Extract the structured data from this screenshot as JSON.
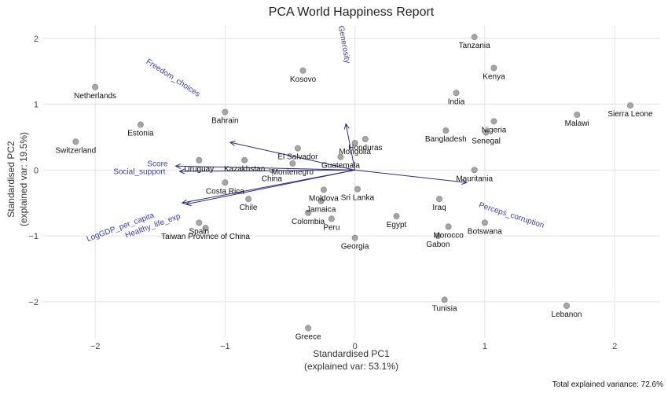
{
  "chart_data": {
    "type": "scatter",
    "title": "PCA World Happiness Report",
    "xlabel": "Standardised PC1",
    "xlabel_sub": "(explained var: 53.1%)",
    "ylabel": "Standardised PC2",
    "ylabel_sub": "(explained var: 19.5%)",
    "footnote": "Total explained variance: 72.6%",
    "xlim": [
      -2.4,
      2.35
    ],
    "ylim": [
      -2.55,
      2.2
    ],
    "xticks": [
      -2,
      -1,
      0,
      1,
      2
    ],
    "yticks": [
      -2,
      -1,
      0,
      1,
      2
    ],
    "xtick_labels": [
      "−2",
      "−1",
      "0",
      "1",
      "2"
    ],
    "ytick_labels": [
      "−2",
      "−1",
      "0",
      "1",
      "2"
    ],
    "grid": true,
    "points": [
      {
        "name": "Netherlands",
        "x": -2.0,
        "y": 1.26,
        "anchor": "middle",
        "dy": 1
      },
      {
        "name": "Switzerland",
        "x": -2.15,
        "y": 0.43,
        "anchor": "middle",
        "dy": 1
      },
      {
        "name": "Estonia",
        "x": -1.65,
        "y": 0.69,
        "anchor": "middle",
        "dy": 1
      },
      {
        "name": "Bahrain",
        "x": -1.0,
        "y": 0.88,
        "anchor": "middle",
        "dy": 1
      },
      {
        "name": "Kosovo",
        "x": -0.4,
        "y": 1.51,
        "anchor": "middle",
        "dy": 1
      },
      {
        "name": "Honduras",
        "x": 0.08,
        "y": 0.47,
        "anchor": "middle",
        "dy": 1
      },
      {
        "name": "Mongolia",
        "x": 0.0,
        "y": 0.41,
        "anchor": "middle",
        "dy": 1
      },
      {
        "name": "El Salvador",
        "x": -0.44,
        "y": 0.33,
        "anchor": "middle",
        "dy": 1
      },
      {
        "name": "Guatemala",
        "x": -0.11,
        "y": 0.2,
        "anchor": "middle",
        "dy": 1
      },
      {
        "name": "Uruguay",
        "x": -1.2,
        "y": 0.15,
        "anchor": "middle",
        "dy": 1
      },
      {
        "name": "Kazakhstan",
        "x": -0.85,
        "y": 0.15,
        "anchor": "middle",
        "dy": 1
      },
      {
        "name": "Montenegro",
        "x": -0.48,
        "y": 0.1,
        "anchor": "middle",
        "dy": 1
      },
      {
        "name": "China",
        "x": -0.64,
        "y": 0.0,
        "anchor": "middle",
        "dy": 1
      },
      {
        "name": "Costa Rica",
        "x": -1.0,
        "y": -0.19,
        "anchor": "middle",
        "dy": 1
      },
      {
        "name": "Chile",
        "x": -0.82,
        "y": -0.44,
        "anchor": "middle",
        "dy": 1
      },
      {
        "name": "Moldova",
        "x": -0.24,
        "y": -0.3,
        "anchor": "middle",
        "dy": 1
      },
      {
        "name": "Sri Lanka",
        "x": 0.02,
        "y": -0.29,
        "anchor": "middle",
        "dy": 1
      },
      {
        "name": "Jamaica",
        "x": -0.26,
        "y": -0.47,
        "anchor": "middle",
        "dy": 1
      },
      {
        "name": "Colombia",
        "x": -0.36,
        "y": -0.65,
        "anchor": "middle",
        "dy": 1
      },
      {
        "name": "Peru",
        "x": -0.18,
        "y": -0.74,
        "anchor": "middle",
        "dy": 1
      },
      {
        "name": "Egypt",
        "x": 0.32,
        "y": -0.7,
        "anchor": "middle",
        "dy": 1
      },
      {
        "name": "Georgia",
        "x": 0.0,
        "y": -1.03,
        "anchor": "middle",
        "dy": 1
      },
      {
        "name": "Spain",
        "x": -1.2,
        "y": -0.8,
        "anchor": "middle",
        "dy": 1
      },
      {
        "name": "Taiwan Province of China",
        "x": -1.15,
        "y": -0.88,
        "anchor": "middle",
        "dy": 1
      },
      {
        "name": "Tanzania",
        "x": 0.92,
        "y": 2.02,
        "anchor": "middle",
        "dy": 1
      },
      {
        "name": "Kenya",
        "x": 1.07,
        "y": 1.55,
        "anchor": "middle",
        "dy": 1
      },
      {
        "name": "India",
        "x": 0.78,
        "y": 1.17,
        "anchor": "middle",
        "dy": 1
      },
      {
        "name": "Sierra Leone",
        "x": 2.12,
        "y": 0.98,
        "anchor": "middle",
        "dy": 1
      },
      {
        "name": "Malawi",
        "x": 1.71,
        "y": 0.84,
        "anchor": "middle",
        "dy": 1
      },
      {
        "name": "Nigeria",
        "x": 1.07,
        "y": 0.74,
        "anchor": "middle",
        "dy": 1
      },
      {
        "name": "Bangladesh",
        "x": 0.7,
        "y": 0.6,
        "anchor": "middle",
        "dy": 1
      },
      {
        "name": "Senegal",
        "x": 1.01,
        "y": 0.57,
        "anchor": "middle",
        "dy": 1
      },
      {
        "name": "Mauritania",
        "x": 0.92,
        "y": 0.0,
        "anchor": "middle",
        "dy": 1
      },
      {
        "name": "Iraq",
        "x": 0.65,
        "y": -0.44,
        "anchor": "middle",
        "dy": 1
      },
      {
        "name": "Botswana",
        "x": 1.0,
        "y": -0.8,
        "anchor": "middle",
        "dy": 1
      },
      {
        "name": "Morocco",
        "x": 0.72,
        "y": -0.86,
        "anchor": "middle",
        "dy": 1
      },
      {
        "name": "Gabon",
        "x": 0.64,
        "y": -1.0,
        "anchor": "middle",
        "dy": 1
      },
      {
        "name": "Tunisia",
        "x": 0.69,
        "y": -1.97,
        "anchor": "middle",
        "dy": 1
      },
      {
        "name": "Lebanon",
        "x": 1.63,
        "y": -2.06,
        "anchor": "middle",
        "dy": 1
      },
      {
        "name": "Greece",
        "x": -0.36,
        "y": -2.4,
        "anchor": "middle",
        "dy": 1
      }
    ],
    "vectors": [
      {
        "name": "Generosity",
        "x": -0.07,
        "y": 0.7,
        "lx": -0.1,
        "ly": 1.9,
        "rot": 80
      },
      {
        "name": "Freedom_choices",
        "x": -0.96,
        "y": 0.42,
        "lx": -1.41,
        "ly": 1.37,
        "rot": 33
      },
      {
        "name": "Score",
        "x": -1.38,
        "y": 0.06,
        "lx": -1.52,
        "ly": 0.06,
        "rot": 0
      },
      {
        "name": "Social_support",
        "x": -1.35,
        "y": -0.02,
        "lx": -1.66,
        "ly": -0.06,
        "rot": 0
      },
      {
        "name": "LogGDP_per_capita",
        "x": -1.33,
        "y": -0.5,
        "lx": -1.8,
        "ly": -0.9,
        "rot": -20
      },
      {
        "name": "Healthy_life_exp",
        "x": -1.3,
        "y": -0.52,
        "lx": -1.55,
        "ly": -0.88,
        "rot": -20
      },
      {
        "name": "Perceptions_corruption",
        "label": "Perceps_corruption",
        "x": 0.86,
        "y": -0.19,
        "lx": 1.2,
        "ly": -0.72,
        "rot": 18
      }
    ],
    "vector_color": "#2b2b8c",
    "point_color": "#a6a6a6"
  }
}
